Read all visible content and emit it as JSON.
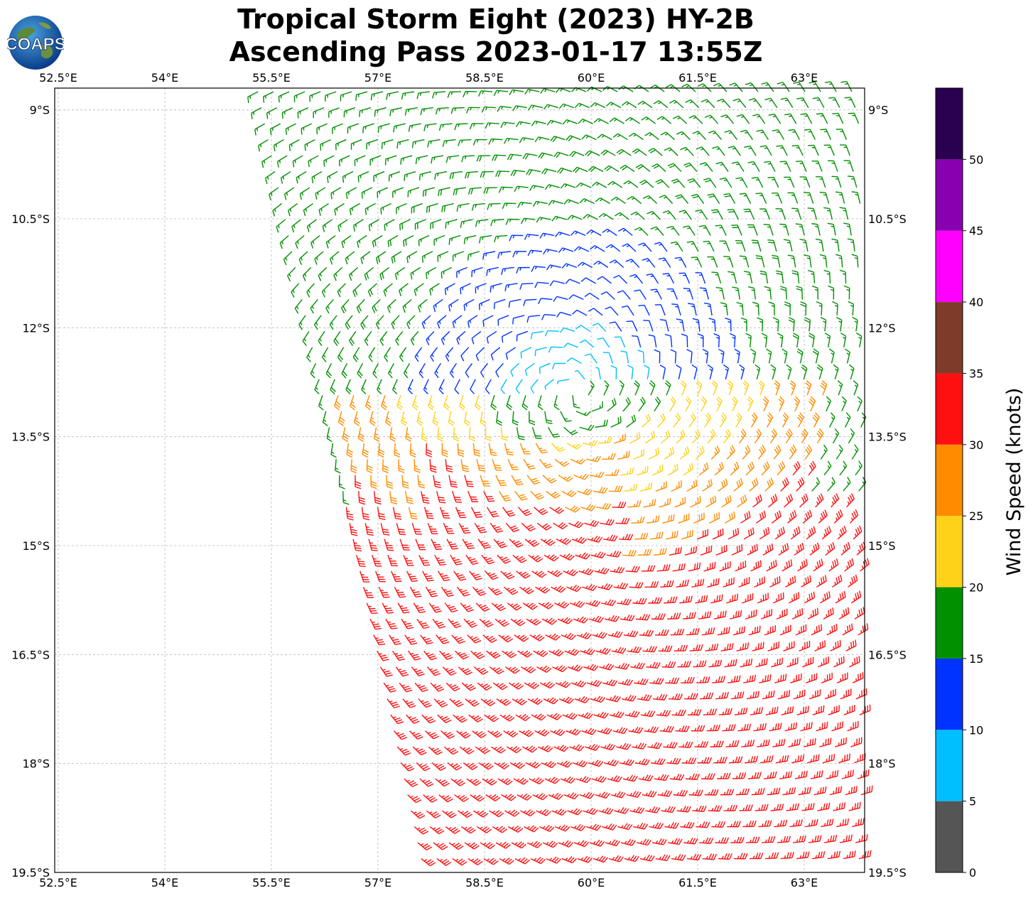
{
  "title": {
    "line1": "Tropical Storm Eight (2023) HY-2B",
    "line2": "Ascending Pass 2023-01-17 13:55Z"
  },
  "logo": {
    "text": "COAPS",
    "icon": "globe-logo-icon"
  },
  "map": {
    "lon_range": [
      52.45,
      63.85
    ],
    "lat_range": [
      -19.5,
      -8.7
    ],
    "x_ticks": [
      {
        "value": 52.5,
        "label": "52.5°E"
      },
      {
        "value": 54.0,
        "label": "54°E"
      },
      {
        "value": 55.5,
        "label": "55.5°E"
      },
      {
        "value": 57.0,
        "label": "57°E"
      },
      {
        "value": 58.5,
        "label": "58.5°E"
      },
      {
        "value": 60.0,
        "label": "60°E"
      },
      {
        "value": 61.5,
        "label": "61.5°E"
      },
      {
        "value": 63.0,
        "label": "63°E"
      }
    ],
    "y_ticks": [
      {
        "value": -9.0,
        "label": "9°S"
      },
      {
        "value": -10.5,
        "label": "10.5°S"
      },
      {
        "value": -12.0,
        "label": "12°S"
      },
      {
        "value": -13.5,
        "label": "13.5°S"
      },
      {
        "value": -15.0,
        "label": "15°S"
      },
      {
        "value": -16.5,
        "label": "16.5°S"
      },
      {
        "value": -18.0,
        "label": "18°S"
      },
      {
        "value": -19.5,
        "label": "19.5°S"
      }
    ],
    "grid": true,
    "storm_center": {
      "lon": 59.8,
      "lat": -12.9
    },
    "swath_west_edge": [
      [
        55.25,
        -8.7
      ],
      [
        57.6,
        -19.5
      ]
    ],
    "wind_symbol": "wind-barb"
  },
  "colorbar": {
    "label": "Wind Speed (knots)",
    "ticks": [
      "0",
      "5",
      "10",
      "15",
      "20",
      "25",
      "30",
      "35",
      "40",
      "45",
      "50"
    ],
    "bins": [
      {
        "min": 0,
        "max": 5,
        "color": "#555555"
      },
      {
        "min": 5,
        "max": 10,
        "color": "#00bfff"
      },
      {
        "min": 10,
        "max": 15,
        "color": "#0033ff"
      },
      {
        "min": 15,
        "max": 20,
        "color": "#009000"
      },
      {
        "min": 20,
        "max": 25,
        "color": "#ffd21a"
      },
      {
        "min": 25,
        "max": 30,
        "color": "#ff8c00"
      },
      {
        "min": 30,
        "max": 35,
        "color": "#ff1010"
      },
      {
        "min": 35,
        "max": 40,
        "color": "#7f3b2a"
      },
      {
        "min": 40,
        "max": 45,
        "color": "#ff00ff"
      },
      {
        "min": 45,
        "max": 50,
        "color": "#8800b0"
      },
      {
        "min": 50,
        "max": 55,
        "color": "#2a0050"
      }
    ]
  }
}
